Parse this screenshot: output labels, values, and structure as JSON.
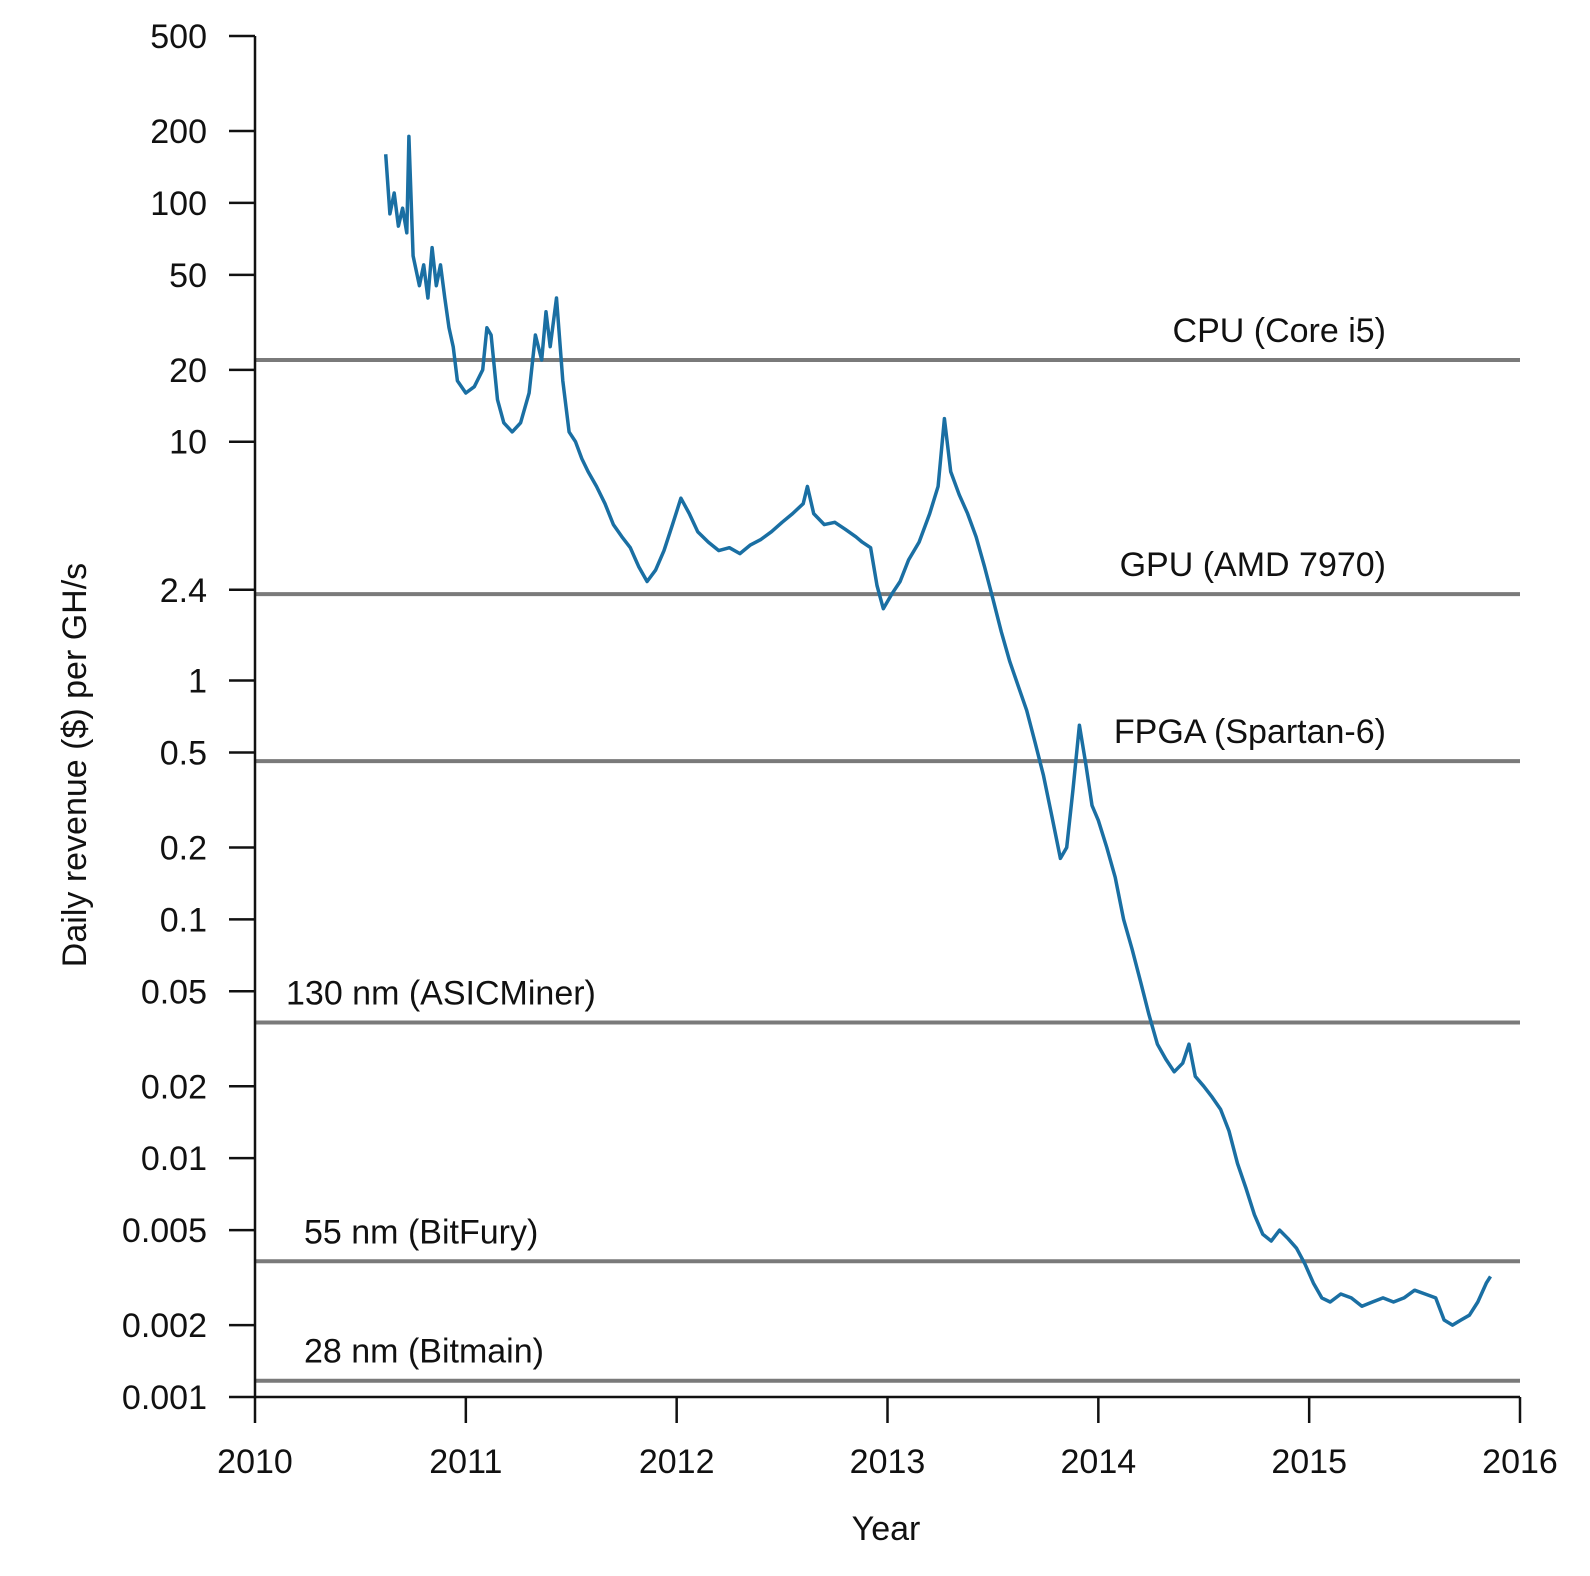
{
  "chart_data": {
    "type": "line",
    "xlabel": "Year",
    "ylabel": "Daily revenue ($) per GH/s",
    "y_scale": "log",
    "xlim": [
      2010,
      2016
    ],
    "ylim": [
      0.001,
      500
    ],
    "grid": false,
    "x_ticks": [
      "2010",
      "2011",
      "2012",
      "2013",
      "2014",
      "2015",
      "2016"
    ],
    "y_ticks": [
      {
        "value": 500,
        "label": "500"
      },
      {
        "value": 200,
        "label": "200"
      },
      {
        "value": 100,
        "label": "100"
      },
      {
        "value": 50,
        "label": "50"
      },
      {
        "value": 20,
        "label": "20"
      },
      {
        "value": 10,
        "label": "10"
      },
      {
        "value": 2.4,
        "label": "2.4"
      },
      {
        "value": 1,
        "label": "1"
      },
      {
        "value": 0.5,
        "label": "0.5"
      },
      {
        "value": 0.2,
        "label": "0.2"
      },
      {
        "value": 0.1,
        "label": "0.1"
      },
      {
        "value": 0.05,
        "label": "0.05"
      },
      {
        "value": 0.02,
        "label": "0.02"
      },
      {
        "value": 0.01,
        "label": "0.01"
      },
      {
        "value": 0.005,
        "label": "0.005"
      },
      {
        "value": 0.002,
        "label": "0.002"
      },
      {
        "value": 0.001,
        "label": "0.001"
      }
    ],
    "reference_lines": [
      {
        "label": "CPU (Core i5)",
        "value": 22,
        "label_side": "right"
      },
      {
        "label": "GPU (AMD 7970)",
        "value": 2.3,
        "label_side": "right"
      },
      {
        "label": "FPGA (Spartan-6)",
        "value": 0.46,
        "label_side": "right"
      },
      {
        "label": "130 nm (ASICMiner)",
        "value": 0.037,
        "label_side": "left"
      },
      {
        "label": "55 nm (BitFury)",
        "value": 0.0037,
        "label_side": "left"
      },
      {
        "label": "28 nm (Bitmain)",
        "value": 0.00117,
        "label_side": "left"
      }
    ],
    "series": [
      {
        "color": "#1a6fa3",
        "points": [
          [
            2010.62,
            160
          ],
          [
            2010.64,
            90
          ],
          [
            2010.66,
            110
          ],
          [
            2010.68,
            80
          ],
          [
            2010.7,
            95
          ],
          [
            2010.72,
            75
          ],
          [
            2010.73,
            190
          ],
          [
            2010.75,
            60
          ],
          [
            2010.78,
            45
          ],
          [
            2010.8,
            55
          ],
          [
            2010.82,
            40
          ],
          [
            2010.84,
            65
          ],
          [
            2010.86,
            45
          ],
          [
            2010.88,
            55
          ],
          [
            2010.9,
            40
          ],
          [
            2010.92,
            30
          ],
          [
            2010.94,
            25
          ],
          [
            2010.96,
            18
          ],
          [
            2011.0,
            16
          ],
          [
            2011.04,
            17
          ],
          [
            2011.08,
            20
          ],
          [
            2011.1,
            30
          ],
          [
            2011.12,
            28
          ],
          [
            2011.15,
            15
          ],
          [
            2011.18,
            12
          ],
          [
            2011.22,
            11
          ],
          [
            2011.26,
            12
          ],
          [
            2011.3,
            16
          ],
          [
            2011.33,
            28
          ],
          [
            2011.36,
            22
          ],
          [
            2011.38,
            35
          ],
          [
            2011.4,
            25
          ],
          [
            2011.43,
            40
          ],
          [
            2011.46,
            18
          ],
          [
            2011.49,
            11
          ],
          [
            2011.52,
            10
          ],
          [
            2011.55,
            8.5
          ],
          [
            2011.58,
            7.5
          ],
          [
            2011.62,
            6.5
          ],
          [
            2011.66,
            5.5
          ],
          [
            2011.7,
            4.5
          ],
          [
            2011.74,
            4.0
          ],
          [
            2011.78,
            3.6
          ],
          [
            2011.82,
            3.0
          ],
          [
            2011.86,
            2.6
          ],
          [
            2011.9,
            2.9
          ],
          [
            2011.94,
            3.5
          ],
          [
            2011.98,
            4.5
          ],
          [
            2012.02,
            5.8
          ],
          [
            2012.06,
            5.0
          ],
          [
            2012.1,
            4.2
          ],
          [
            2012.15,
            3.8
          ],
          [
            2012.2,
            3.5
          ],
          [
            2012.25,
            3.6
          ],
          [
            2012.3,
            3.4
          ],
          [
            2012.35,
            3.7
          ],
          [
            2012.4,
            3.9
          ],
          [
            2012.45,
            4.2
          ],
          [
            2012.5,
            4.6
          ],
          [
            2012.55,
            5.0
          ],
          [
            2012.6,
            5.5
          ],
          [
            2012.62,
            6.5
          ],
          [
            2012.65,
            5.0
          ],
          [
            2012.7,
            4.5
          ],
          [
            2012.75,
            4.6
          ],
          [
            2012.8,
            4.3
          ],
          [
            2012.85,
            4.0
          ],
          [
            2012.88,
            3.8
          ],
          [
            2012.92,
            3.6
          ],
          [
            2012.95,
            2.5
          ],
          [
            2012.98,
            2.0
          ],
          [
            2013.02,
            2.3
          ],
          [
            2013.06,
            2.6
          ],
          [
            2013.1,
            3.2
          ],
          [
            2013.15,
            3.8
          ],
          [
            2013.2,
            5.0
          ],
          [
            2013.24,
            6.5
          ],
          [
            2013.27,
            12.5
          ],
          [
            2013.3,
            7.5
          ],
          [
            2013.34,
            6.0
          ],
          [
            2013.38,
            5.0
          ],
          [
            2013.42,
            4.0
          ],
          [
            2013.46,
            3.0
          ],
          [
            2013.5,
            2.2
          ],
          [
            2013.54,
            1.6
          ],
          [
            2013.58,
            1.2
          ],
          [
            2013.62,
            0.95
          ],
          [
            2013.66,
            0.75
          ],
          [
            2013.7,
            0.55
          ],
          [
            2013.74,
            0.4
          ],
          [
            2013.78,
            0.27
          ],
          [
            2013.82,
            0.18
          ],
          [
            2013.85,
            0.2
          ],
          [
            2013.88,
            0.35
          ],
          [
            2013.91,
            0.65
          ],
          [
            2013.94,
            0.45
          ],
          [
            2013.97,
            0.3
          ],
          [
            2014.0,
            0.26
          ],
          [
            2014.04,
            0.2
          ],
          [
            2014.08,
            0.15
          ],
          [
            2014.12,
            0.1
          ],
          [
            2014.16,
            0.075
          ],
          [
            2014.2,
            0.055
          ],
          [
            2014.24,
            0.04
          ],
          [
            2014.28,
            0.03
          ],
          [
            2014.32,
            0.026
          ],
          [
            2014.36,
            0.023
          ],
          [
            2014.4,
            0.025
          ],
          [
            2014.43,
            0.03
          ],
          [
            2014.46,
            0.022
          ],
          [
            2014.5,
            0.02
          ],
          [
            2014.54,
            0.018
          ],
          [
            2014.58,
            0.016
          ],
          [
            2014.62,
            0.013
          ],
          [
            2014.66,
            0.0095
          ],
          [
            2014.7,
            0.0075
          ],
          [
            2014.74,
            0.0058
          ],
          [
            2014.78,
            0.0048
          ],
          [
            2014.82,
            0.0045
          ],
          [
            2014.86,
            0.005
          ],
          [
            2014.9,
            0.0046
          ],
          [
            2014.94,
            0.0042
          ],
          [
            2014.98,
            0.0036
          ],
          [
            2015.02,
            0.003
          ],
          [
            2015.06,
            0.0026
          ],
          [
            2015.1,
            0.0025
          ],
          [
            2015.15,
            0.0027
          ],
          [
            2015.2,
            0.0026
          ],
          [
            2015.25,
            0.0024
          ],
          [
            2015.3,
            0.0025
          ],
          [
            2015.35,
            0.0026
          ],
          [
            2015.4,
            0.0025
          ],
          [
            2015.45,
            0.0026
          ],
          [
            2015.5,
            0.0028
          ],
          [
            2015.55,
            0.0027
          ],
          [
            2015.6,
            0.0026
          ],
          [
            2015.64,
            0.0021
          ],
          [
            2015.68,
            0.002
          ],
          [
            2015.72,
            0.0021
          ],
          [
            2015.76,
            0.0022
          ],
          [
            2015.8,
            0.0025
          ],
          [
            2015.84,
            0.003
          ],
          [
            2015.86,
            0.0032
          ]
        ]
      }
    ]
  }
}
